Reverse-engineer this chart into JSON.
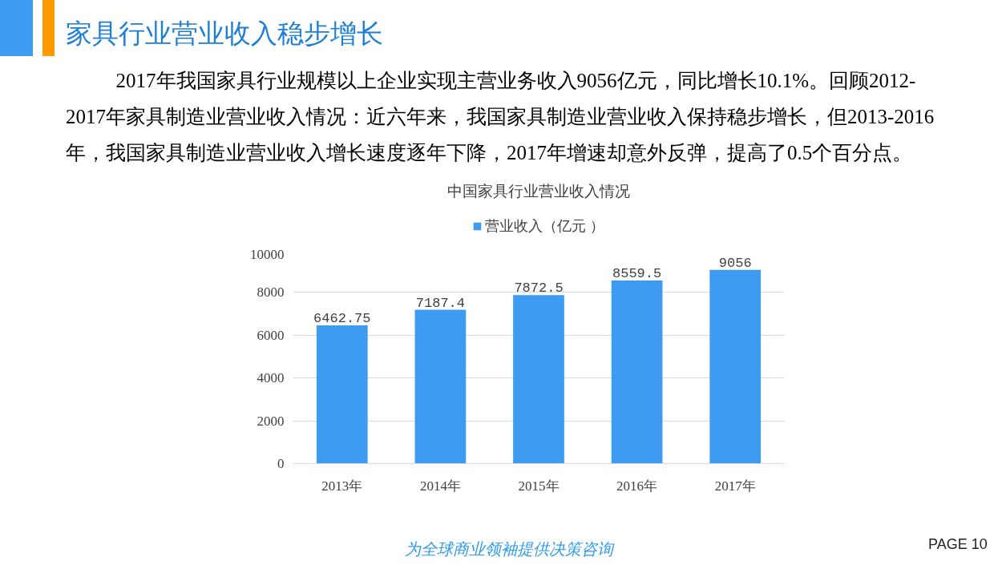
{
  "chart_data": {
    "type": "bar",
    "title": "中国家具行业营业收入情况",
    "categories": [
      "2013年",
      "2014年",
      "2015年",
      "2016年",
      "2017年"
    ],
    "series": [
      {
        "name": "营业收入（亿元 ）",
        "color": "#3d9cf2",
        "values": [
          6462.75,
          7187.4,
          7872.5,
          8559.5,
          9056
        ]
      }
    ],
    "ylim": [
      0,
      10000
    ],
    "yticks": [
      0,
      2000,
      4000,
      6000,
      8000,
      10000
    ],
    "grid": "y",
    "legend": "top",
    "data_labels": true,
    "annotations": [
      "家具行业营业收入稳步增长",
      "2017年我国家具行业规模以上企业实现主营业务收入9056亿元，同比增长10.1%。回顾2012-2017年家具制造业营业收入情况：近六年来，我国家具制造业营业收入保持稳步增长，但2013-2016年，我国家具制造业营业收入增长速度逐年下降，2017年增速却意外反弹，提高了0.5个百分点。",
      "为全球商业领袖提供决策咨询",
      "PAGE 10"
    ]
  }
}
